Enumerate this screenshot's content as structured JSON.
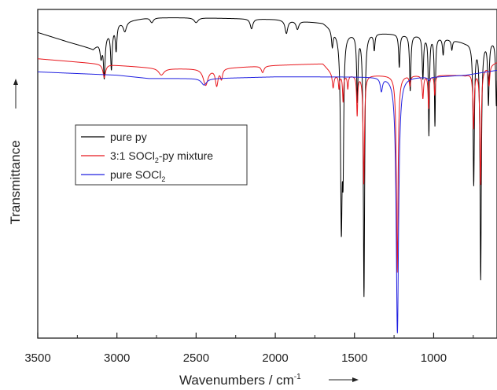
{
  "chart_data": {
    "type": "line",
    "xlabel": "Wavenumbers / cm",
    "xlabel_sup": "-1",
    "ylabel": "Transmittance",
    "xlim": [
      3500,
      600
    ],
    "x_reversed": true,
    "x_ticks": [
      3500,
      3000,
      2500,
      2000,
      1500,
      1000
    ],
    "x_tick_labels": [
      "3500",
      "3000",
      "2500",
      "2000",
      "1500",
      "1000"
    ],
    "y_ticks_shown": false,
    "ylim": [
      0,
      1
    ],
    "legend": {
      "placement": "upper-left",
      "entries": [
        {
          "series": 0,
          "parts": [
            {
              "t": "pure py"
            }
          ]
        },
        {
          "series": 1,
          "parts": [
            {
              "t": "3:1 SOCl"
            },
            {
              "t": "2",
              "sub": true
            },
            {
              "t": "-py mixture"
            }
          ]
        },
        {
          "series": 2,
          "parts": [
            {
              "t": "pure SOCl"
            },
            {
              "t": "2",
              "sub": true
            }
          ]
        }
      ]
    },
    "series": [
      {
        "name": "pure py",
        "color": "#000000",
        "baseline": [
          [
            3500,
            0.93
          ],
          [
            3300,
            0.9
          ],
          [
            3150,
            0.88
          ],
          [
            3000,
            0.96
          ],
          [
            2800,
            0.975
          ],
          [
            2500,
            0.975
          ],
          [
            2000,
            0.97
          ],
          [
            1700,
            0.96
          ],
          [
            1600,
            0.93
          ],
          [
            1400,
            0.93
          ],
          [
            1000,
            0.92
          ],
          [
            800,
            0.9
          ],
          [
            600,
            0.91
          ]
        ],
        "peaks": [
          {
            "x": 3100,
            "depth": 0.05,
            "width": 8
          },
          {
            "x": 3080,
            "depth": 0.12,
            "width": 6
          },
          {
            "x": 3035,
            "depth": 0.12,
            "width": 6
          },
          {
            "x": 3005,
            "depth": 0.08,
            "width": 6
          },
          {
            "x": 2950,
            "depth": 0.03,
            "width": 12
          },
          {
            "x": 2780,
            "depth": 0.015,
            "width": 12
          },
          {
            "x": 2500,
            "depth": 0.015,
            "width": 15
          },
          {
            "x": 2150,
            "depth": 0.03,
            "width": 10
          },
          {
            "x": 1930,
            "depth": 0.04,
            "width": 10
          },
          {
            "x": 1860,
            "depth": 0.025,
            "width": 10
          },
          {
            "x": 1640,
            "depth": 0.05,
            "width": 6
          },
          {
            "x": 1583,
            "depth": 0.56,
            "width": 6
          },
          {
            "x": 1572,
            "depth": 0.35,
            "width": 5
          },
          {
            "x": 1482,
            "depth": 0.2,
            "width": 5
          },
          {
            "x": 1440,
            "depth": 0.8,
            "width": 5
          },
          {
            "x": 1375,
            "depth": 0.05,
            "width": 5
          },
          {
            "x": 1217,
            "depth": 0.1,
            "width": 5
          },
          {
            "x": 1148,
            "depth": 0.17,
            "width": 5
          },
          {
            "x": 1068,
            "depth": 0.13,
            "width": 5
          },
          {
            "x": 1030,
            "depth": 0.3,
            "width": 4
          },
          {
            "x": 992,
            "depth": 0.27,
            "width": 4
          },
          {
            "x": 940,
            "depth": 0.05,
            "width": 5
          },
          {
            "x": 885,
            "depth": 0.03,
            "width": 5
          },
          {
            "x": 747,
            "depth": 0.43,
            "width": 5
          },
          {
            "x": 703,
            "depth": 0.72,
            "width": 5
          },
          {
            "x": 654,
            "depth": 0.19,
            "width": 5
          },
          {
            "x": 604,
            "depth": 0.2,
            "width": 5
          }
        ]
      },
      {
        "name": "3:1 SOCl2-py mixture",
        "color": "#e8171d",
        "baseline": [
          [
            3500,
            0.85
          ],
          [
            3000,
            0.83
          ],
          [
            2700,
            0.82
          ],
          [
            2400,
            0.82
          ],
          [
            2000,
            0.83
          ],
          [
            1700,
            0.835
          ],
          [
            1630,
            0.8
          ],
          [
            1500,
            0.8
          ],
          [
            1000,
            0.8
          ],
          [
            800,
            0.8
          ],
          [
            600,
            0.84
          ]
        ],
        "peaks": [
          {
            "x": 3080,
            "depth": 0.04,
            "width": 10
          },
          {
            "x": 2720,
            "depth": 0.02,
            "width": 20
          },
          {
            "x": 2440,
            "depth": 0.05,
            "width": 18
          },
          {
            "x": 2370,
            "depth": 0.05,
            "width": 10
          },
          {
            "x": 2340,
            "depth": 0.03,
            "width": 8
          },
          {
            "x": 2080,
            "depth": 0.02,
            "width": 10
          },
          {
            "x": 1635,
            "depth": 0.04,
            "width": 6
          },
          {
            "x": 1598,
            "depth": 0.04,
            "width": 4
          },
          {
            "x": 1572,
            "depth": 0.08,
            "width": 4
          },
          {
            "x": 1542,
            "depth": 0.04,
            "width": 4
          },
          {
            "x": 1483,
            "depth": 0.12,
            "width": 4
          },
          {
            "x": 1441,
            "depth": 0.33,
            "width": 5
          },
          {
            "x": 1230,
            "depth": 0.6,
            "width": 6
          },
          {
            "x": 1150,
            "depth": 0.03,
            "width": 5
          },
          {
            "x": 1068,
            "depth": 0.07,
            "width": 5
          },
          {
            "x": 1032,
            "depth": 0.1,
            "width": 4
          },
          {
            "x": 993,
            "depth": 0.06,
            "width": 4
          },
          {
            "x": 748,
            "depth": 0.17,
            "width": 5
          },
          {
            "x": 704,
            "depth": 0.35,
            "width": 5
          },
          {
            "x": 650,
            "depth": 0.06,
            "width": 5
          }
        ]
      },
      {
        "name": "pure SOCl2",
        "color": "#2020e0",
        "baseline": [
          [
            3500,
            0.81
          ],
          [
            3000,
            0.8
          ],
          [
            2800,
            0.79
          ],
          [
            2400,
            0.79
          ],
          [
            2000,
            0.795
          ],
          [
            1500,
            0.795
          ],
          [
            1000,
            0.795
          ],
          [
            800,
            0.8
          ],
          [
            600,
            0.815
          ]
        ],
        "peaks": [
          {
            "x": 2450,
            "depth": 0.02,
            "width": 20
          },
          {
            "x": 1330,
            "depth": 0.04,
            "width": 8
          },
          {
            "x": 1229,
            "depth": 0.78,
            "width": 9
          },
          {
            "x": 1030,
            "depth": 0.01,
            "width": 8
          }
        ]
      }
    ]
  }
}
